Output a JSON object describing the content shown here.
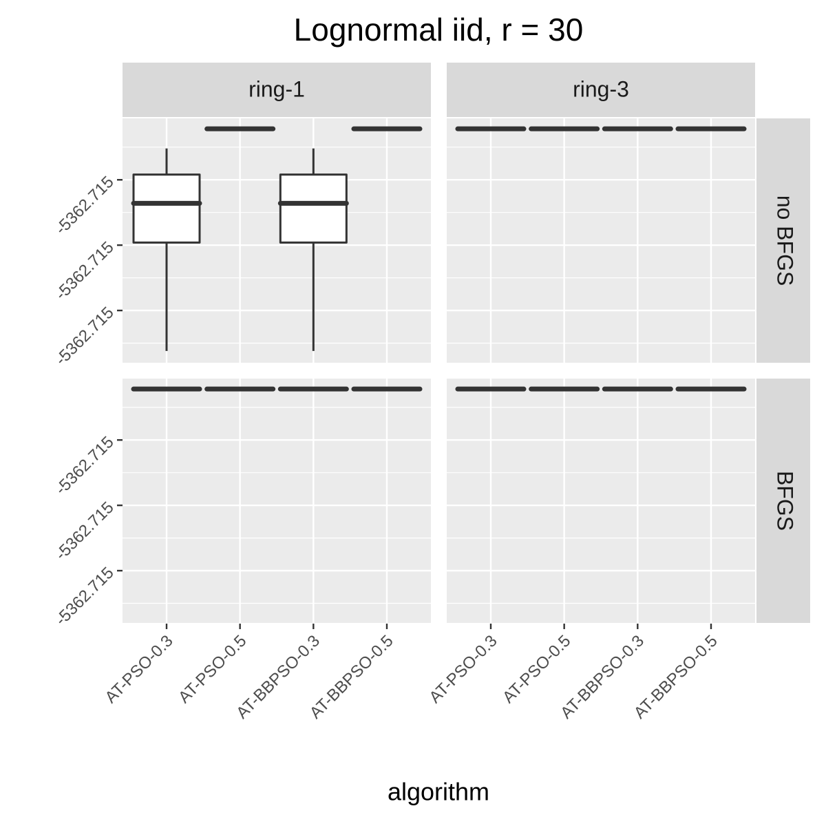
{
  "chart_data": {
    "type": "boxplot",
    "title": "Lognormal iid, r = 30",
    "x_label": "algorithm",
    "categories": [
      "AT-PSO-0.3",
      "AT-PSO-0.5",
      "AT-BBPSO-0.3",
      "AT-BBPSO-0.5"
    ],
    "col_facets": [
      "ring-1",
      "ring-3"
    ],
    "row_facets": [
      "no BFGS",
      "BFGS"
    ],
    "ylim": [
      -5362.71504,
      -5362.714853
    ],
    "yticks": [
      {
        "value": -5362.7149,
        "label": "-5362.715"
      },
      {
        "value": -5362.71495,
        "label": "-5362.715"
      },
      {
        "value": -5362.715,
        "label": "-5362.715"
      }
    ],
    "y_minor_ticks": [
      -5362.714875,
      -5362.714925,
      -5362.714975,
      -5362.715025
    ],
    "box_fill": "#ffffff",
    "box_color": "#333333",
    "grid": true,
    "boxes": [
      [
        [
          {
            "min": -5362.715031,
            "q1": -5362.714948,
            "median": -5362.714918,
            "q3": -5362.714896,
            "max": -5362.714876
          },
          {
            "min": -5362.714861,
            "q1": -5362.714861,
            "median": -5362.714861,
            "q3": -5362.714861,
            "max": -5362.714861
          },
          {
            "min": -5362.715031,
            "q1": -5362.714948,
            "median": -5362.714918,
            "q3": -5362.714896,
            "max": -5362.714876
          },
          {
            "min": -5362.714861,
            "q1": -5362.714861,
            "median": -5362.714861,
            "q3": -5362.714861,
            "max": -5362.714861
          }
        ],
        [
          {
            "min": -5362.714861,
            "q1": -5362.714861,
            "median": -5362.714861,
            "q3": -5362.714861,
            "max": -5362.714861
          },
          {
            "min": -5362.714861,
            "q1": -5362.714861,
            "median": -5362.714861,
            "q3": -5362.714861,
            "max": -5362.714861
          },
          {
            "min": -5362.714861,
            "q1": -5362.714861,
            "median": -5362.714861,
            "q3": -5362.714861,
            "max": -5362.714861
          },
          {
            "min": -5362.714861,
            "q1": -5362.714861,
            "median": -5362.714861,
            "q3": -5362.714861,
            "max": -5362.714861
          }
        ]
      ],
      [
        [
          {
            "min": -5362.714861,
            "q1": -5362.714861,
            "median": -5362.714861,
            "q3": -5362.714861,
            "max": -5362.714861
          },
          {
            "min": -5362.714861,
            "q1": -5362.714861,
            "median": -5362.714861,
            "q3": -5362.714861,
            "max": -5362.714861
          },
          {
            "min": -5362.714861,
            "q1": -5362.714861,
            "median": -5362.714861,
            "q3": -5362.714861,
            "max": -5362.714861
          },
          {
            "min": -5362.714861,
            "q1": -5362.714861,
            "median": -5362.714861,
            "q3": -5362.714861,
            "max": -5362.714861
          }
        ],
        [
          {
            "min": -5362.714861,
            "q1": -5362.714861,
            "median": -5362.714861,
            "q3": -5362.714861,
            "max": -5362.714861
          },
          {
            "min": -5362.714861,
            "q1": -5362.714861,
            "median": -5362.714861,
            "q3": -5362.714861,
            "max": -5362.714861
          },
          {
            "min": -5362.714861,
            "q1": -5362.714861,
            "median": -5362.714861,
            "q3": -5362.714861,
            "max": -5362.714861
          },
          {
            "min": -5362.714861,
            "q1": -5362.714861,
            "median": -5362.714861,
            "q3": -5362.714861,
            "max": -5362.714861
          }
        ]
      ]
    ]
  }
}
